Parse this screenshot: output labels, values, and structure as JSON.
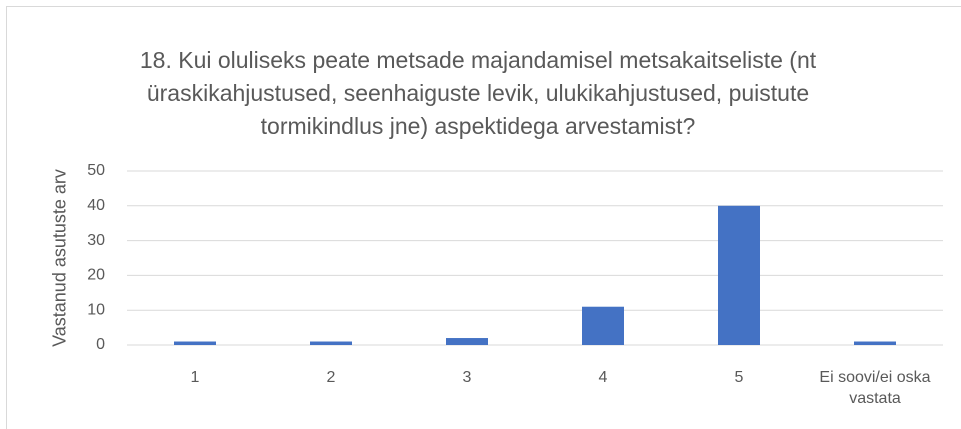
{
  "chart_data": {
    "type": "bar",
    "title": "18. Kui oluliseks peate metsade majandamisel metsakaitseliste (nt üraskikahjustused, seenhaiguste levik, ulukikahjustused, puistute tormikindlus jne) aspektidega arvestamist?",
    "y_label": "Vastanud asutuste arv",
    "categories": [
      "1",
      "2",
      "3",
      "4",
      "5",
      "Ei soovi/ei oska vastata"
    ],
    "values": [
      1,
      1,
      2,
      11,
      40,
      1
    ],
    "color": "#4472c4",
    "ylim": [
      0,
      50
    ],
    "yticks": [
      0,
      10,
      20,
      30,
      40,
      50
    ],
    "grid": true
  }
}
